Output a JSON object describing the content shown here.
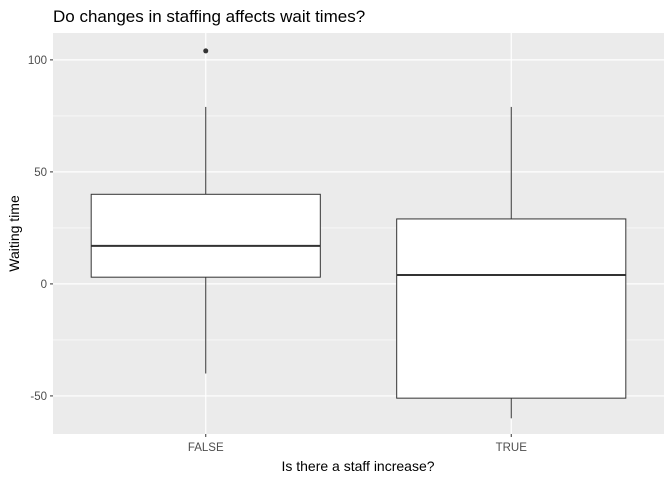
{
  "chart_data": {
    "type": "boxplot",
    "title": "Do changes in staffing affects wait times?",
    "xlabel": "Is there a staff increase?",
    "ylabel": "Waiting time",
    "categories": [
      "FALSE",
      "TRUE"
    ],
    "yticks": [
      -50,
      0,
      50,
      100
    ],
    "ylim": [
      -67,
      112
    ],
    "grid": true,
    "legend": "none",
    "boxes": [
      {
        "category": "FALSE",
        "whisker_low": -40,
        "q1": 3,
        "median": 17,
        "q3": 40,
        "whisker_high": 79,
        "outliers": [
          104
        ]
      },
      {
        "category": "TRUE",
        "whisker_low": -60,
        "q1": -51,
        "median": 4,
        "q3": 29,
        "whisker_high": 79,
        "outliers": []
      }
    ]
  },
  "colors": {
    "panel_background": "#ebebeb",
    "grid_line": "#ffffff",
    "box_fill": "#ffffff",
    "box_line": "#333333",
    "tick_text": "#4d4d4d"
  }
}
